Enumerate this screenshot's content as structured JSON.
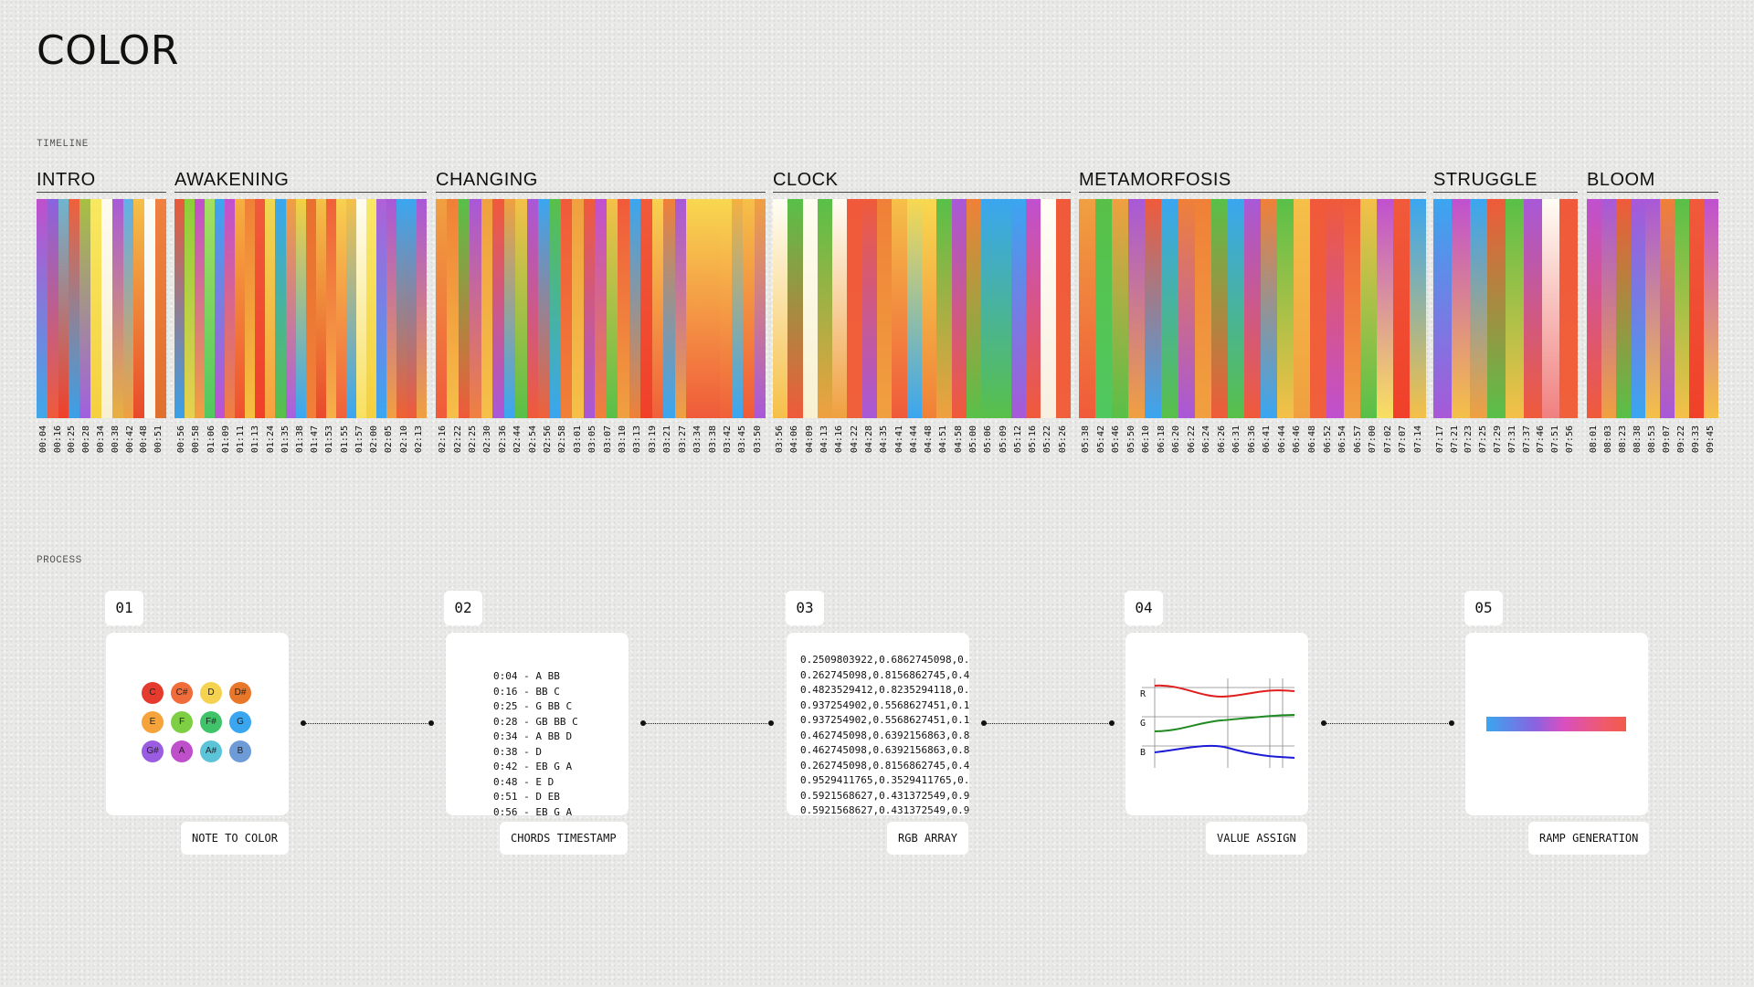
{
  "page": {
    "title": "COLOR",
    "timeline_label": "TIMELINE",
    "process_label": "PROCESS"
  },
  "colors": {
    "background": "#e9e9e8",
    "card": "#ffffff",
    "r_line": "#e01e1e",
    "g_line": "#1f8a1f",
    "b_line": "#1b1bd6"
  },
  "timeline": [
    {
      "name": "INTRO",
      "strips": [
        [
          "#c04fcc",
          "#3fa8e8"
        ],
        [
          "#8a63e0",
          "#f05a3a"
        ],
        [
          "#6fb5d0",
          "#f0402a"
        ],
        [
          "#f0603a",
          "#3aa0e8"
        ],
        [
          "#a8c040",
          "#a060e0"
        ],
        [
          "#f8e860",
          "#f5d040"
        ],
        [
          "#fffaf0",
          "#f8f0d0"
        ],
        [
          "#a85ad8",
          "#e8b040"
        ],
        [
          "#5fb0e8",
          "#f0a040"
        ],
        [
          "#f5c048",
          "#e84a2a"
        ],
        [
          "#fbfbf5",
          "#f8f8f0"
        ],
        [
          "#f08040",
          "#e07030"
        ]
      ],
      "times": [
        "00:04",
        "00:16",
        "00:25",
        "00:28",
        "00:34",
        "00:38",
        "00:42",
        "00:48",
        "00:51"
      ]
    },
    {
      "name": "AWAKENING",
      "strips": [
        [
          "#e85a3a",
          "#3aa0e8"
        ],
        [
          "#8bcf3a",
          "#e8d050"
        ],
        [
          "#c04fcc",
          "#f0a040"
        ],
        [
          "#a6e060",
          "#50c860"
        ],
        [
          "#3aa6f0",
          "#c050d0"
        ],
        [
          "#c050d0",
          "#f08040"
        ],
        [
          "#f5b040",
          "#f05030"
        ],
        [
          "#f08038",
          "#f5c040"
        ],
        [
          "#f05a3a",
          "#f0402a"
        ],
        [
          "#f0d850",
          "#f8a040"
        ],
        [
          "#3aa6f0",
          "#58c048"
        ],
        [
          "#f0a040",
          "#a860e0"
        ],
        [
          "#f5d040",
          "#3aa6f0"
        ],
        [
          "#e87030",
          "#f08038"
        ],
        [
          "#f5c048",
          "#e84a2a"
        ],
        [
          "#f0603a",
          "#f5b048"
        ],
        [
          "#f8d050",
          "#f0603a"
        ],
        [
          "#f5c048",
          "#3aa6f0"
        ],
        [
          "#fffdf0",
          "#f8e060"
        ],
        [
          "#f8e868",
          "#f5d040"
        ],
        [
          "#b060d8",
          "#3aa6f0"
        ],
        [
          "#a858d8",
          "#f0a040"
        ],
        [
          "#3aa6f0",
          "#f06030"
        ],
        [
          "#3aa6f0",
          "#f05a3a"
        ],
        [
          "#a858d8",
          "#f0a040"
        ]
      ],
      "times": [
        "00:56",
        "00:58",
        "01:06",
        "01:09",
        "01:11",
        "01:13",
        "01:24",
        "01:35",
        "01:38",
        "01:47",
        "01:53",
        "01:55",
        "01:57",
        "02:00",
        "02:05",
        "02:10",
        "02:13"
      ]
    },
    {
      "name": "CHANGING",
      "strips": [
        [
          "#f0a040",
          "#f05a3a"
        ],
        [
          "#f08038",
          "#f5c048"
        ],
        [
          "#58c048",
          "#f05a3a"
        ],
        [
          "#a858d8",
          "#f08040"
        ],
        [
          "#f0a040",
          "#f5c048"
        ],
        [
          "#f05a3a",
          "#a858d8"
        ],
        [
          "#f0a040",
          "#3aa6f0"
        ],
        [
          "#f5c048",
          "#58c048"
        ],
        [
          "#a858d8",
          "#f05a3a"
        ],
        [
          "#3aa6f0",
          "#f0603a"
        ],
        [
          "#58c048",
          "#3aa6f0"
        ],
        [
          "#f05a3a",
          "#f08038"
        ],
        [
          "#f0a040",
          "#f5c048"
        ],
        [
          "#f05a3a",
          "#a858d8"
        ],
        [
          "#c050d0",
          "#f08038"
        ],
        [
          "#f5c048",
          "#58c048"
        ],
        [
          "#f05a3a",
          "#f0a040"
        ],
        [
          "#3aa6f0",
          "#f08038"
        ],
        [
          "#f05a3a",
          "#f0402a"
        ],
        [
          "#f8d050",
          "#f0603a"
        ],
        [
          "#f08038",
          "#3aa6f0"
        ],
        [
          "#a858d8",
          "#f0a040"
        ],
        [
          "#f8d850",
          "#f05a3a"
        ],
        [
          "#f8d850",
          "#f05a3a"
        ],
        [
          "#f8d850",
          "#f05a3a"
        ],
        [
          "#f8d850",
          "#f0603a"
        ],
        [
          "#f5b040",
          "#3aa6f0"
        ],
        [
          "#f5c048",
          "#f05a3a"
        ],
        [
          "#f0a040",
          "#a858d8"
        ]
      ],
      "times": [
        "02:16",
        "02:22",
        "02:25",
        "02:30",
        "02:36",
        "02:44",
        "02:54",
        "02:56",
        "02:58",
        "03:01",
        "03:05",
        "03:07",
        "03:10",
        "03:13",
        "03:19",
        "03:21",
        "03:27",
        "03:34",
        "03:38",
        "03:42",
        "03:45",
        "03:50"
      ]
    },
    {
      "name": "CLOCK",
      "strips": [
        [
          "#fffdf5",
          "#f5c048"
        ],
        [
          "#58c048",
          "#f05a3a"
        ],
        [
          "#fffdf0",
          "#f8f0d0"
        ],
        [
          "#58c048",
          "#f0a040"
        ],
        [
          "#fffdf5",
          "#f0a040"
        ],
        [
          "#f05a3a",
          "#f0603a"
        ],
        [
          "#f05a3a",
          "#a858d8"
        ],
        [
          "#f08038",
          "#f0a040"
        ],
        [
          "#f5c048",
          "#f05a3a"
        ],
        [
          "#f8d850",
          "#3aa6f0"
        ],
        [
          "#f8d850",
          "#f08038"
        ],
        [
          "#58c048",
          "#f0a040"
        ],
        [
          "#a858d8",
          "#f05a3a"
        ],
        [
          "#f08038",
          "#58c048"
        ],
        [
          "#3aa6f0",
          "#58c048"
        ],
        [
          "#3aa6f0",
          "#58c048"
        ],
        [
          "#3aa6f0",
          "#a858d8"
        ],
        [
          "#c050d0",
          "#f05a3a"
        ],
        [
          "#fffdf5",
          "#f8f0e0"
        ],
        [
          "#f05a3a",
          "#f0603a"
        ]
      ],
      "times": [
        "03:56",
        "04:06",
        "04:09",
        "04:13",
        "04:16",
        "04:22",
        "04:28",
        "04:35",
        "04:41",
        "04:44",
        "04:48",
        "04:51",
        "04:58",
        "05:00",
        "05:06",
        "05:09",
        "05:12",
        "05:16",
        "05:22",
        "05:26"
      ]
    },
    {
      "name": "METAMORFOSIS",
      "strips": [
        [
          "#f0a040",
          "#f05a3a"
        ],
        [
          "#58c048",
          "#50c860"
        ],
        [
          "#f0a040",
          "#58c048"
        ],
        [
          "#a858d8",
          "#f0a040"
        ],
        [
          "#f05a3a",
          "#3aa6f0"
        ],
        [
          "#3aa6f0",
          "#58c048"
        ],
        [
          "#f08038",
          "#a858d8"
        ],
        [
          "#f08038",
          "#f0a040"
        ],
        [
          "#58c048",
          "#f05a3a"
        ],
        [
          "#3aa6f0",
          "#58c048"
        ],
        [
          "#a858d8",
          "#f05a3a"
        ],
        [
          "#f08038",
          "#3aa6f0"
        ],
        [
          "#58c048",
          "#f5c048"
        ],
        [
          "#f5c048",
          "#f0a040"
        ],
        [
          "#f05a3a",
          "#f0603a"
        ],
        [
          "#f05a3a",
          "#c050d0"
        ],
        [
          "#f05a3a",
          "#f0a040"
        ],
        [
          "#f5c048",
          "#58c048"
        ],
        [
          "#c050d0",
          "#f8e060"
        ],
        [
          "#f05a3a",
          "#f0402a"
        ],
        [
          "#3aa6f0",
          "#f5c048"
        ]
      ],
      "times": [
        "05:38",
        "05:42",
        "05:46",
        "05:50",
        "06:10",
        "06:18",
        "06:20",
        "06:22",
        "06:24",
        "06:26",
        "06:31",
        "06:36",
        "06:41",
        "06:44",
        "06:46",
        "06:48",
        "06:52",
        "06:54",
        "06:57",
        "07:00",
        "07:02",
        "07:07",
        "07:14"
      ]
    },
    {
      "name": "STRUGGLE",
      "strips": [
        [
          "#3aa6f0",
          "#a858d8"
        ],
        [
          "#c050d0",
          "#f5c048"
        ],
        [
          "#3aa6f0",
          "#f0a040"
        ],
        [
          "#f05a3a",
          "#58c048"
        ],
        [
          "#58c048",
          "#f5c048"
        ],
        [
          "#a858d8",
          "#f05a3a"
        ],
        [
          "#fffdf5",
          "#f08080"
        ],
        [
          "#f05a3a",
          "#f0603a"
        ]
      ],
      "times": [
        "07:17",
        "07:21",
        "07:23",
        "07:25",
        "07:29",
        "07:31",
        "07:37",
        "07:46",
        "07:51",
        "07:56"
      ]
    },
    {
      "name": "BLOOM",
      "strips": [
        [
          "#c050d0",
          "#f05a3a"
        ],
        [
          "#a858d8",
          "#f0a040"
        ],
        [
          "#f05a3a",
          "#58c048"
        ],
        [
          "#a858d8",
          "#3aa6f0"
        ],
        [
          "#a858d8",
          "#f5c048"
        ],
        [
          "#f08038",
          "#a858d8"
        ],
        [
          "#58c048",
          "#f5c048"
        ],
        [
          "#f05a3a",
          "#f0402a"
        ],
        [
          "#c050d0",
          "#f5c048"
        ]
      ],
      "times": [
        "08:01",
        "08:03",
        "08:23",
        "08:38",
        "08:53",
        "09:07",
        "09:22",
        "09:33",
        "09:45"
      ]
    }
  ],
  "process": {
    "steps": [
      {
        "number": "01",
        "label": "NOTE TO COLOR"
      },
      {
        "number": "02",
        "label": "CHORDS TIMESTAMP"
      },
      {
        "number": "03",
        "label": "RGB ARRAY"
      },
      {
        "number": "04",
        "label": "VALUE ASSIGN"
      },
      {
        "number": "05",
        "label": "RAMP GENERATION"
      }
    ],
    "notes": [
      {
        "note": "C",
        "color": "#e53b2e"
      },
      {
        "note": "C#",
        "color": "#f06c3a"
      },
      {
        "note": "D",
        "color": "#f5d350"
      },
      {
        "note": "D#",
        "color": "#e8772a"
      },
      {
        "note": "E",
        "color": "#f5a33a"
      },
      {
        "note": "F",
        "color": "#7fcf45"
      },
      {
        "note": "F#",
        "color": "#3fc46a"
      },
      {
        "note": "G",
        "color": "#3aa6f0"
      },
      {
        "note": "G#",
        "color": "#9a5ce0"
      },
      {
        "note": "A",
        "color": "#c04fcc"
      },
      {
        "note": "A#",
        "color": "#5cc4d8"
      },
      {
        "note": "B",
        "color": "#6c9bd8"
      }
    ],
    "chords": [
      "0:04 - A BB",
      "0:16 - BB C",
      "0:25 - G BB C",
      "0:28 - GB BB C",
      "0:34 - A BB D",
      "0:38 - D",
      "0:42 - EB G A",
      "0:48 - E D",
      "0:51 - D EB",
      "0:56 - EB G A"
    ],
    "rgb_rows": [
      "0.2509803922,0.6862745098,0.",
      "0.262745098,0.8156862745,0.4",
      "0.4823529412,0.8235294118,0.",
      "0.937254902,0.5568627451,0.1",
      "0.937254902,0.5568627451,0.1",
      "0.462745098,0.6392156863,0.8",
      "0.462745098,0.6392156863,0.8",
      "0.262745098,0.8156862745,0.4",
      "0.9529411765,0.3529411765,0.",
      "0.5921568627,0.431372549,0.9",
      "0.5921568627,0.431372549,0.9"
    ],
    "channels": [
      "R",
      "G",
      "B"
    ]
  }
}
